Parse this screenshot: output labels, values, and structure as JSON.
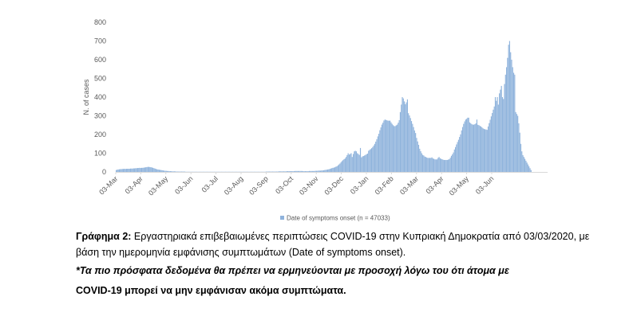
{
  "chart_data": {
    "type": "bar",
    "title": "",
    "xlabel": "",
    "ylabel": "N. of cases",
    "ylim": [
      0,
      800
    ],
    "yticks": [
      0,
      100,
      200,
      300,
      400,
      500,
      600,
      700,
      800
    ],
    "grid": false,
    "legend": "bottom",
    "bar_color": "#8fb3dc",
    "x_tick_labels": [
      "03-Mar",
      "03-Apr",
      "03-May",
      "03-Jun",
      "03-Jul",
      "03-Aug",
      "03-Sep",
      "03-Oct",
      "03-Nov",
      "03-Dec",
      "03-Jan",
      "03-Feb",
      "03-Mar",
      "03-Apr",
      "03-May",
      "03-Jun"
    ],
    "series": [
      {
        "name": "Date of symptoms onset (n = 47033)",
        "x_start": "2020-03-03",
        "x_end": "2021-05-31",
        "values": [
          10,
          12,
          13,
          14,
          15,
          15,
          16,
          16,
          17,
          16,
          17,
          17,
          17,
          17,
          18,
          18,
          18,
          19,
          19,
          20,
          20,
          21,
          21,
          22,
          21,
          22,
          22,
          23,
          24,
          25,
          26,
          27,
          27,
          26,
          25,
          24,
          22,
          20,
          18,
          16,
          14,
          13,
          12,
          11,
          10,
          9,
          8,
          7,
          6,
          6,
          5,
          5,
          4,
          4,
          4,
          3,
          3,
          3,
          3,
          2,
          2,
          2,
          2,
          2,
          2,
          2,
          2,
          2,
          1,
          1,
          1,
          1,
          1,
          1,
          1,
          1,
          1,
          1,
          1,
          1,
          1,
          1,
          1,
          1,
          1,
          1,
          1,
          1,
          1,
          1,
          1,
          1,
          1,
          1,
          1,
          1,
          1,
          1,
          1,
          1,
          1,
          1,
          1,
          1,
          1,
          1,
          1,
          1,
          1,
          1,
          1,
          1,
          1,
          1,
          1,
          1,
          1,
          1,
          1,
          1,
          1,
          1,
          1,
          1,
          1,
          1,
          1,
          1,
          1,
          1,
          1,
          1,
          1,
          1,
          1,
          1,
          1,
          1,
          1,
          1,
          1,
          1,
          1,
          1,
          1,
          1,
          1,
          2,
          2,
          2,
          2,
          2,
          2,
          2,
          2,
          2,
          2,
          2,
          2,
          3,
          3,
          3,
          3,
          3,
          3,
          3,
          3,
          4,
          4,
          4,
          4,
          4,
          4,
          4,
          4,
          5,
          5,
          5,
          5,
          5,
          5,
          5,
          5,
          4,
          4,
          4,
          4,
          4,
          4,
          5,
          5,
          5,
          5,
          5,
          5,
          6,
          6,
          6,
          7,
          7,
          7,
          8,
          8,
          9,
          10,
          11,
          12,
          13,
          14,
          16,
          18,
          20,
          22,
          23,
          25,
          28,
          30,
          35,
          40,
          45,
          52,
          58,
          63,
          68,
          72,
          80,
          90,
          100,
          93,
          96,
          100,
          80,
          96,
          110,
          113,
          110,
          100,
          96,
          91,
          128,
          78,
          83,
          85,
          88,
          91,
          95,
          98,
          113,
          118,
          122,
          127,
          133,
          141,
          150,
          162,
          175,
          190,
          204,
          223,
          238,
          253,
          263,
          275,
          280,
          278,
          276,
          274,
          274,
          274,
          265,
          257,
          250,
          245,
          245,
          249,
          253,
          263,
          277,
          320,
          360,
          400,
          393,
          377,
          362,
          372,
          388,
          314,
          302,
          288,
          272,
          257,
          240,
          222,
          208,
          182,
          163,
          145,
          124,
          111,
          100,
          91,
          88,
          82,
          80,
          77,
          75,
          75,
          75,
          75,
          78,
          72,
          70,
          67,
          67,
          67,
          75,
          80,
          73,
          70,
          68,
          65,
          64,
          64,
          64,
          64,
          66,
          68,
          76,
          86,
          94,
          104,
          120,
          133,
          147,
          160,
          172,
          187,
          201,
          222,
          240,
          257,
          270,
          280,
          284,
          290,
          290,
          265,
          260,
          255,
          253,
          253,
          255,
          260,
          280,
          252,
          250,
          246,
          243,
          238,
          233,
          230,
          228,
          227,
          225,
          243,
          261,
          279,
          297,
          315,
          333,
          350,
          400,
          380,
          400,
          360,
          420,
          440,
          460,
          400,
          390,
          470,
          520,
          560,
          610,
          680,
          700,
          640,
          600,
          560,
          530,
          520,
          320,
          310,
          300,
          260,
          210,
          150,
          110,
          90,
          80,
          70,
          60,
          50,
          40,
          30,
          20,
          10
        ]
      }
    ]
  },
  "caption": {
    "figure_label": "Γράφημα 2:",
    "figure_text": " Εργαστηριακά επιβεβαιωμένες περιπτώσεις COVID-19 στην Κυπριακή Δημοκρατία από 03/03/2020, με βάση την ημερομηνία εμφάνισης συμπτωμάτων (Date of symptoms onset).",
    "note_lead": "*Τα πιο πρόσφατα δεδομένα θα πρέπει να ερμηνεύονται με προσοχή λόγω του ότι άτομα με",
    "note_tail": "COVID-19 μπορεί να μην εμφάνισαν ακόμα συμπτώματα."
  }
}
